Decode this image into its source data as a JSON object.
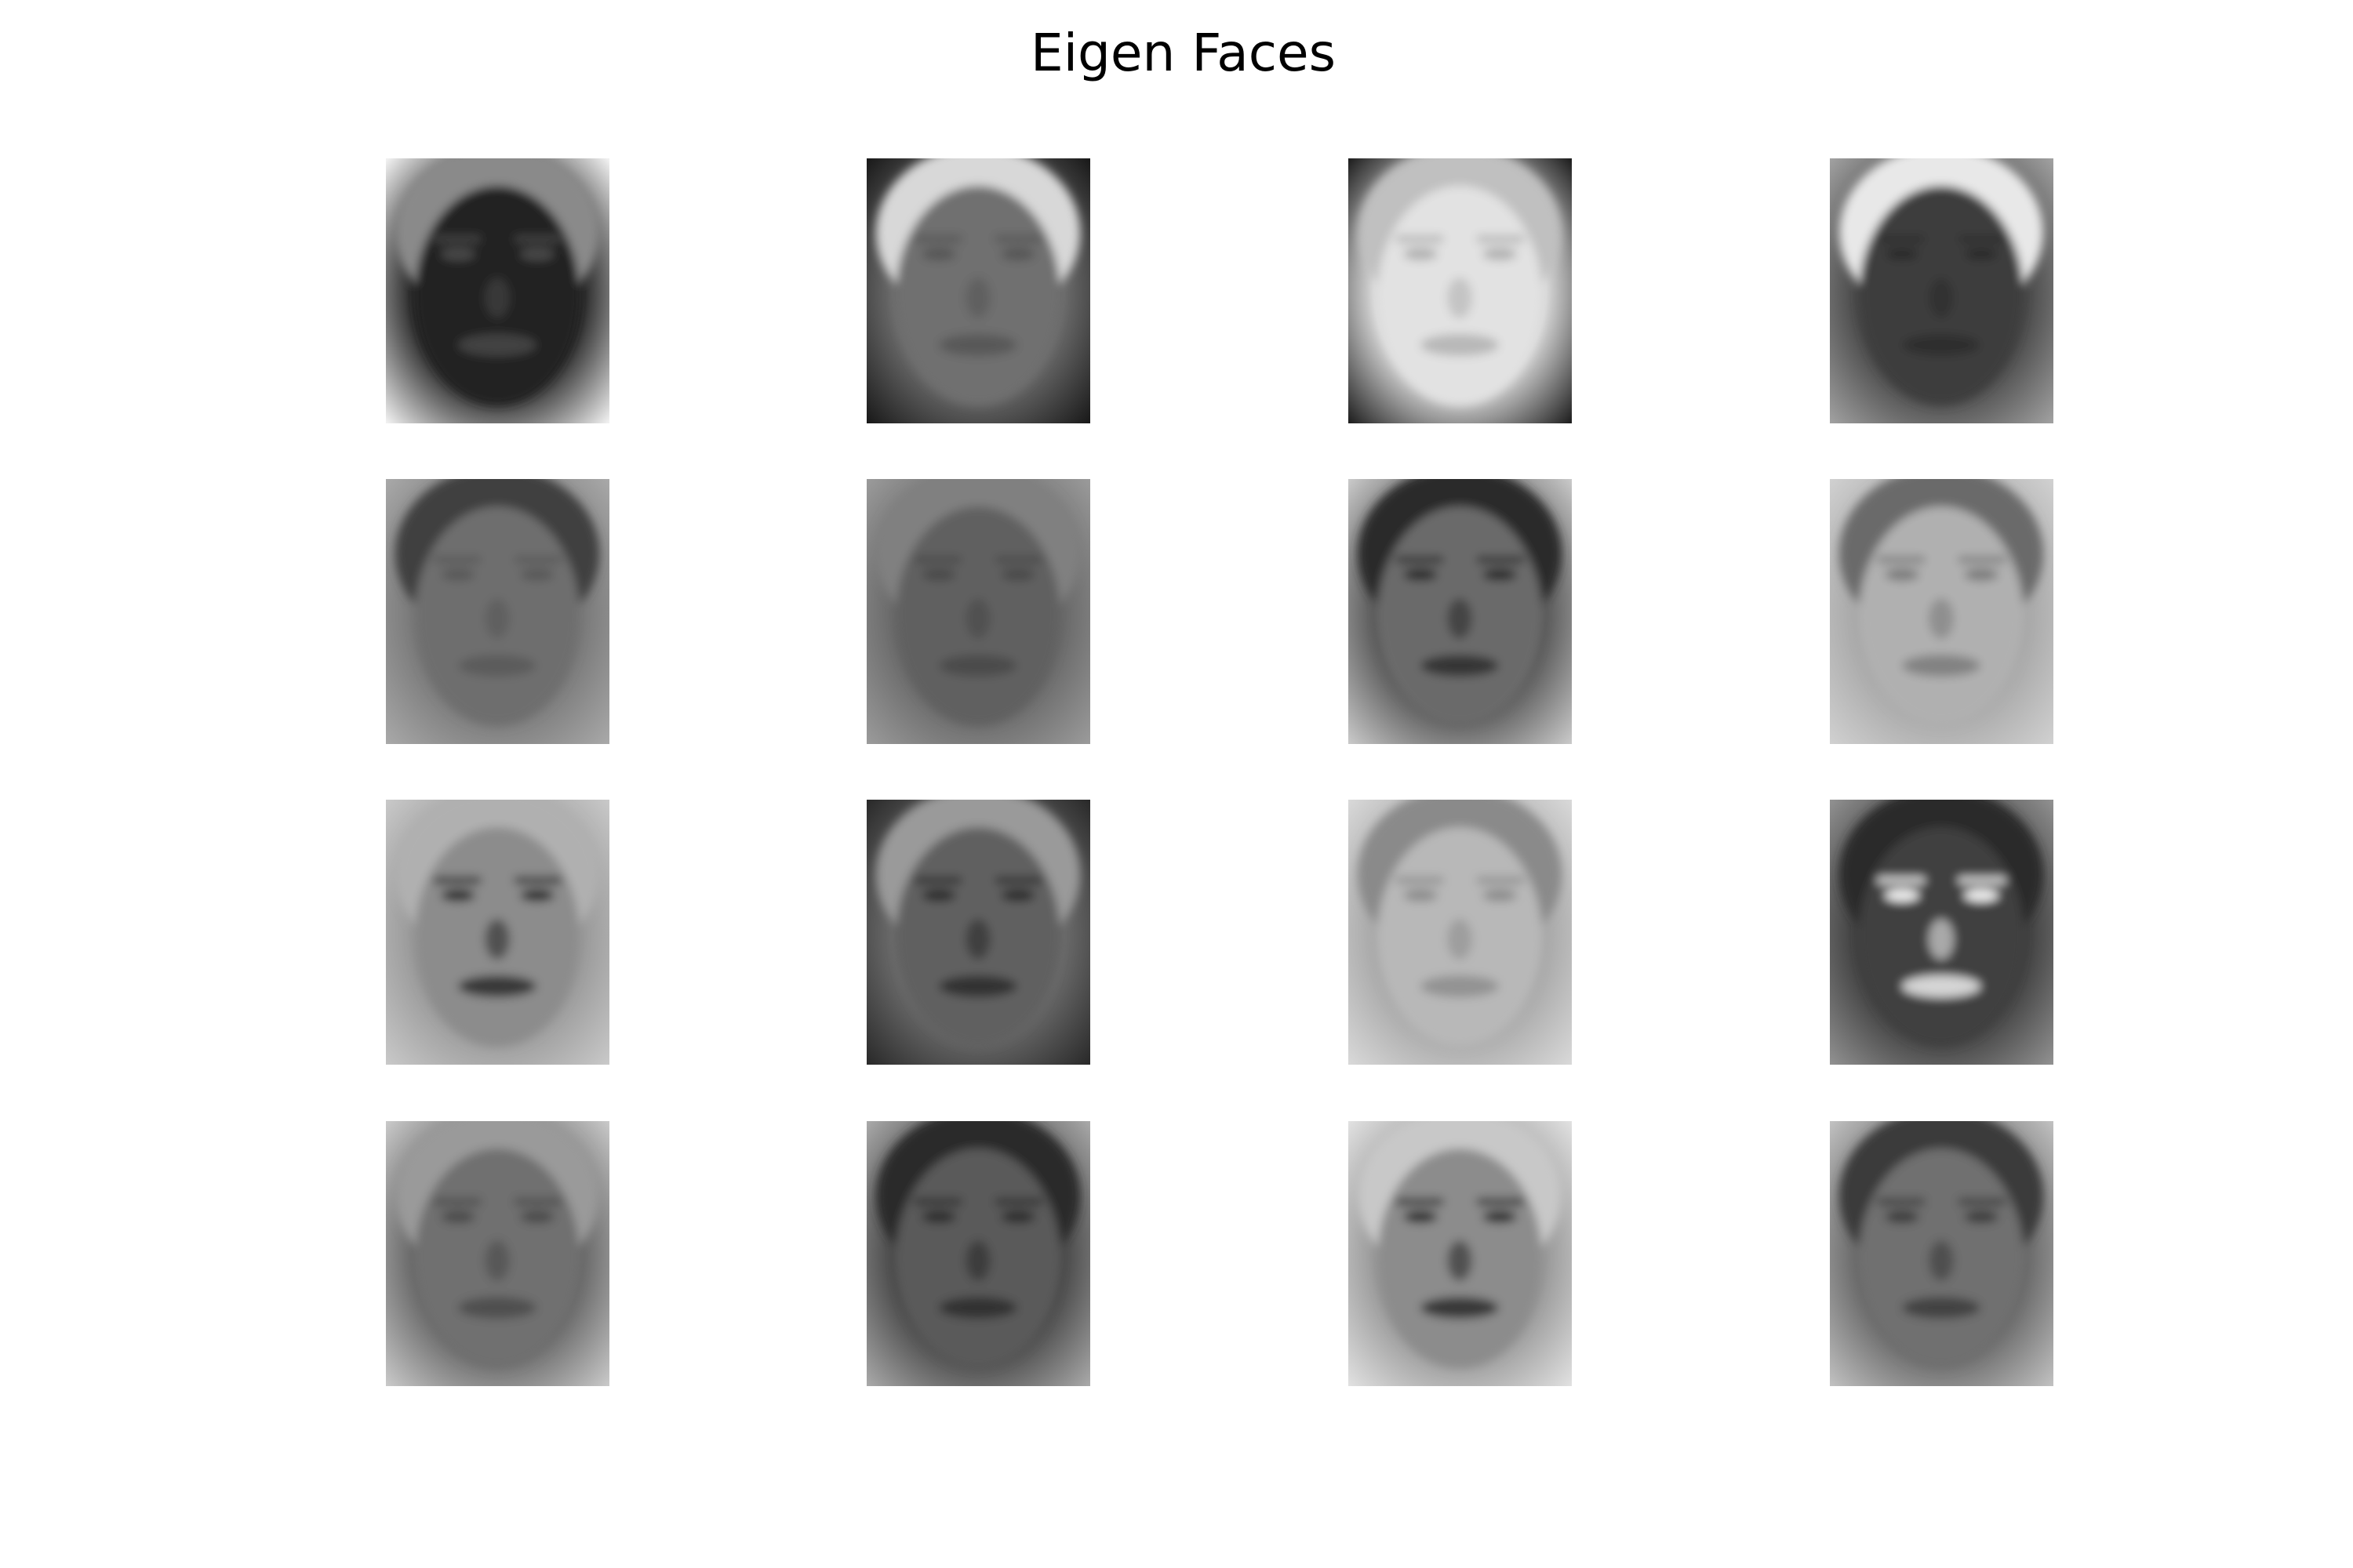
{
  "figure": {
    "title": "Eigen Faces"
  },
  "faces": [
    {
      "id": 1,
      "bg": "#2a2a2a",
      "skin": "#202020",
      "hair": "#8a8a8a",
      "feat": "#4a4a4a",
      "edge": "#f0f0f0"
    },
    {
      "id": 2,
      "bg": "#6a6a6a",
      "skin": "#707070",
      "hair": "#d8d8d8",
      "feat": "#555555",
      "edge": "#1a1a1a"
    },
    {
      "id": 3,
      "bg": "#d8d8d8",
      "skin": "#e2e2e2",
      "hair": "#c0c0c0",
      "feat": "#b0b0b0",
      "edge": "#202020"
    },
    {
      "id": 4,
      "bg": "#4a4a4a",
      "skin": "#3e3e3e",
      "hair": "#e8e8e8",
      "feat": "#2a2a2a",
      "edge": "#a0a0a0"
    },
    {
      "id": 5,
      "bg": "#7a7a7a",
      "skin": "#6e6e6e",
      "hair": "#404040",
      "feat": "#585858",
      "edge": "#a8a8a8"
    },
    {
      "id": 6,
      "bg": "#6a6a6a",
      "skin": "#606060",
      "hair": "#808080",
      "feat": "#484848",
      "edge": "#9a9a9a"
    },
    {
      "id": 7,
      "bg": "#5a5a5a",
      "skin": "#6a6a6a",
      "hair": "#2a2a2a",
      "feat": "#2c2c2c",
      "edge": "#c8c8c8"
    },
    {
      "id": 8,
      "bg": "#a8a8a8",
      "skin": "#b0b0b0",
      "hair": "#6a6a6a",
      "feat": "#7a7a7a",
      "edge": "#d0d0d0"
    },
    {
      "id": 9,
      "bg": "#9a9a9a",
      "skin": "#8c8c8c",
      "hair": "#b0b0b0",
      "feat": "#2a2a2a",
      "edge": "#c8c8c8"
    },
    {
      "id": 10,
      "bg": "#6a6a6a",
      "skin": "#606060",
      "hair": "#9a9a9a",
      "feat": "#2a2a2a",
      "edge": "#2a2a2a"
    },
    {
      "id": 11,
      "bg": "#a8a8a8",
      "skin": "#b8b8b8",
      "hair": "#8a8a8a",
      "feat": "#8c8c8c",
      "edge": "#d8d8d8"
    },
    {
      "id": 12,
      "bg": "#404040",
      "skin": "#404040",
      "hair": "#2a2a2a",
      "feat": "#f0f0f0",
      "edge": "#909090"
    },
    {
      "id": 13,
      "bg": "#6a6a6a",
      "skin": "#707070",
      "hair": "#9a9a9a",
      "feat": "#4a4a4a",
      "edge": "#c8c8c8"
    },
    {
      "id": 14,
      "bg": "#4a4a4a",
      "skin": "#5a5a5a",
      "hair": "#2a2a2a",
      "feat": "#2a2a2a",
      "edge": "#a8a8a8"
    },
    {
      "id": 15,
      "bg": "#9a9a9a",
      "skin": "#8c8c8c",
      "hair": "#c8c8c8",
      "feat": "#2a2a2a",
      "edge": "#e0e0e0"
    },
    {
      "id": 16,
      "bg": "#6a6a6a",
      "skin": "#707070",
      "hair": "#3a3a3a",
      "feat": "#3a3a3a",
      "edge": "#c0c0c0"
    }
  ]
}
